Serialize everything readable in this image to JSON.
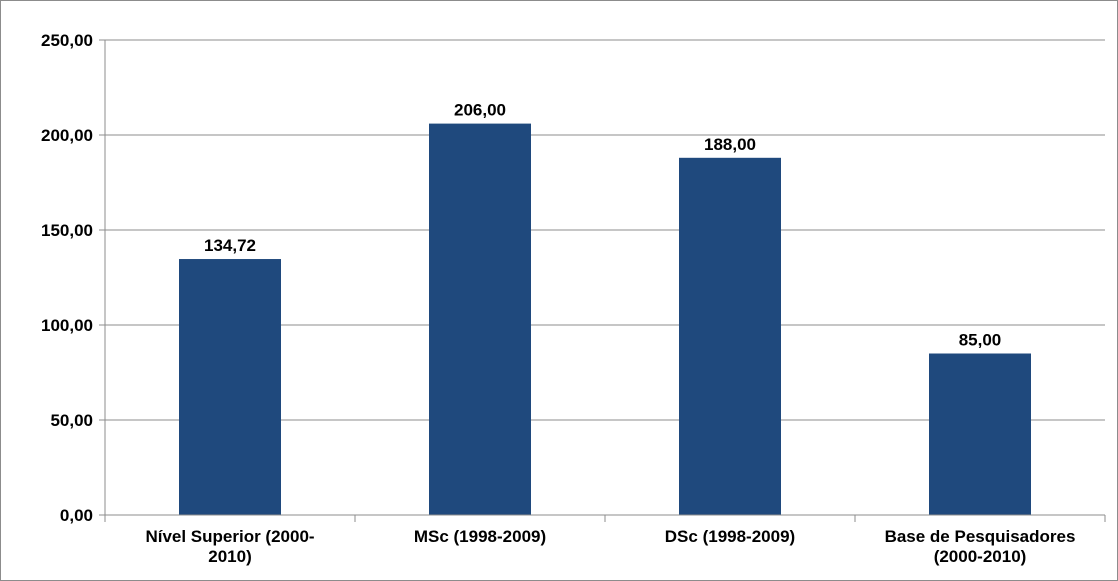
{
  "chart_data": {
    "type": "bar",
    "title": "",
    "xlabel": "",
    "ylabel": "",
    "categories": [
      [
        "Nível Superior (2000-",
        "2010)"
      ],
      [
        "MSc (1998-2009)"
      ],
      [
        "DSc (1998-2009)"
      ],
      [
        "Base de Pesquisadores",
        "(2000-2010)"
      ]
    ],
    "values": [
      134.72,
      206.0,
      188.0,
      85.0
    ],
    "data_labels": [
      "134,72",
      "206,00",
      "188,00",
      "85,00"
    ],
    "ylim": [
      0,
      250
    ],
    "yticks": [
      0,
      50,
      100,
      150,
      200,
      250
    ],
    "ytick_labels": [
      "0,00",
      "50,00",
      "100,00",
      "150,00",
      "200,00",
      "250,00"
    ],
    "grid": true,
    "legend": "none",
    "colors": {
      "bar": "#1f497d",
      "grid": "#8c8c8c",
      "axis": "#8c8c8c"
    }
  }
}
